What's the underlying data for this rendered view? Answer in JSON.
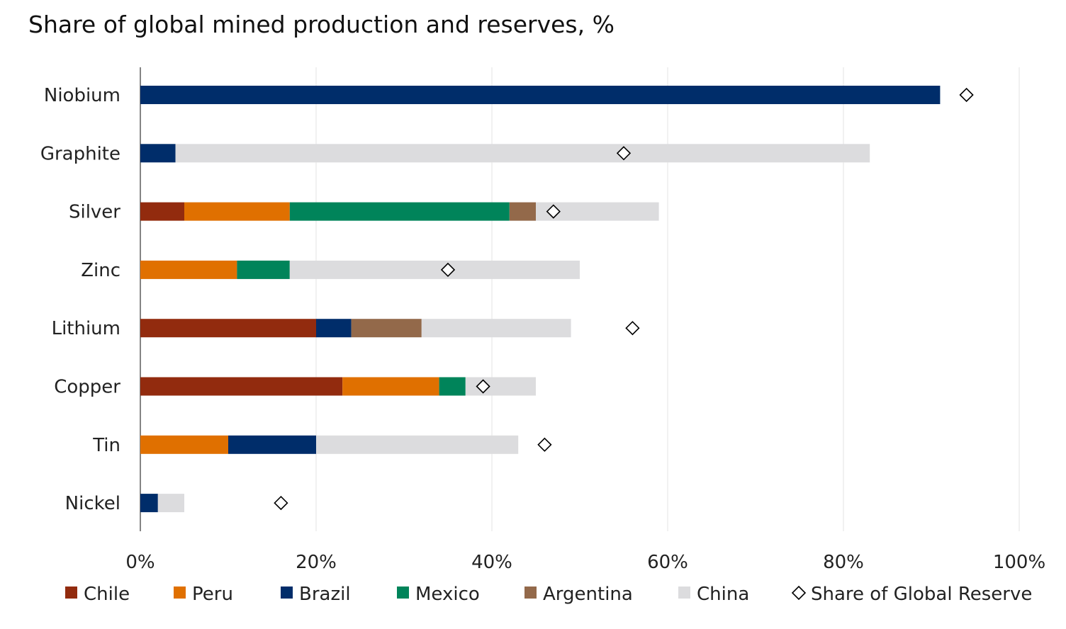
{
  "chart_data": {
    "type": "bar",
    "orientation": "horizontal",
    "stacked": true,
    "title": "Share of global mined production and reserves, %",
    "xlim": [
      0,
      100
    ],
    "x_ticks": [
      "0%",
      "20%",
      "40%",
      "60%",
      "80%",
      "100%"
    ],
    "grid": true,
    "legend_position": "bottom",
    "categories": [
      "Niobium",
      "Graphite",
      "Silver",
      "Zinc",
      "Lithium",
      "Copper",
      "Tin",
      "Nickel"
    ],
    "series": [
      {
        "name": "Chile",
        "color": "#922B0E",
        "values": [
          0,
          0,
          5,
          0,
          20,
          23,
          0,
          0
        ]
      },
      {
        "name": "Peru",
        "color": "#E07000",
        "values": [
          0,
          0,
          12,
          11,
          0,
          11,
          10,
          0
        ]
      },
      {
        "name": "Brazil",
        "color": "#002D6A",
        "values": [
          91,
          4,
          0,
          0,
          4,
          0,
          10,
          2
        ]
      },
      {
        "name": "Mexico",
        "color": "#00845A",
        "values": [
          0,
          0,
          25,
          6,
          0,
          3,
          0,
          0
        ]
      },
      {
        "name": "Argentina",
        "color": "#93694A",
        "values": [
          0,
          0,
          3,
          0,
          8,
          0,
          0,
          0
        ]
      },
      {
        "name": "China",
        "color": "#DCDCDE",
        "values": [
          0,
          79,
          14,
          33,
          17,
          8,
          23,
          3
        ]
      }
    ],
    "markers": {
      "name": "Share of Global Reserve",
      "shape": "diamond",
      "values": [
        94,
        55,
        47,
        35,
        56,
        39,
        46,
        16
      ]
    }
  }
}
